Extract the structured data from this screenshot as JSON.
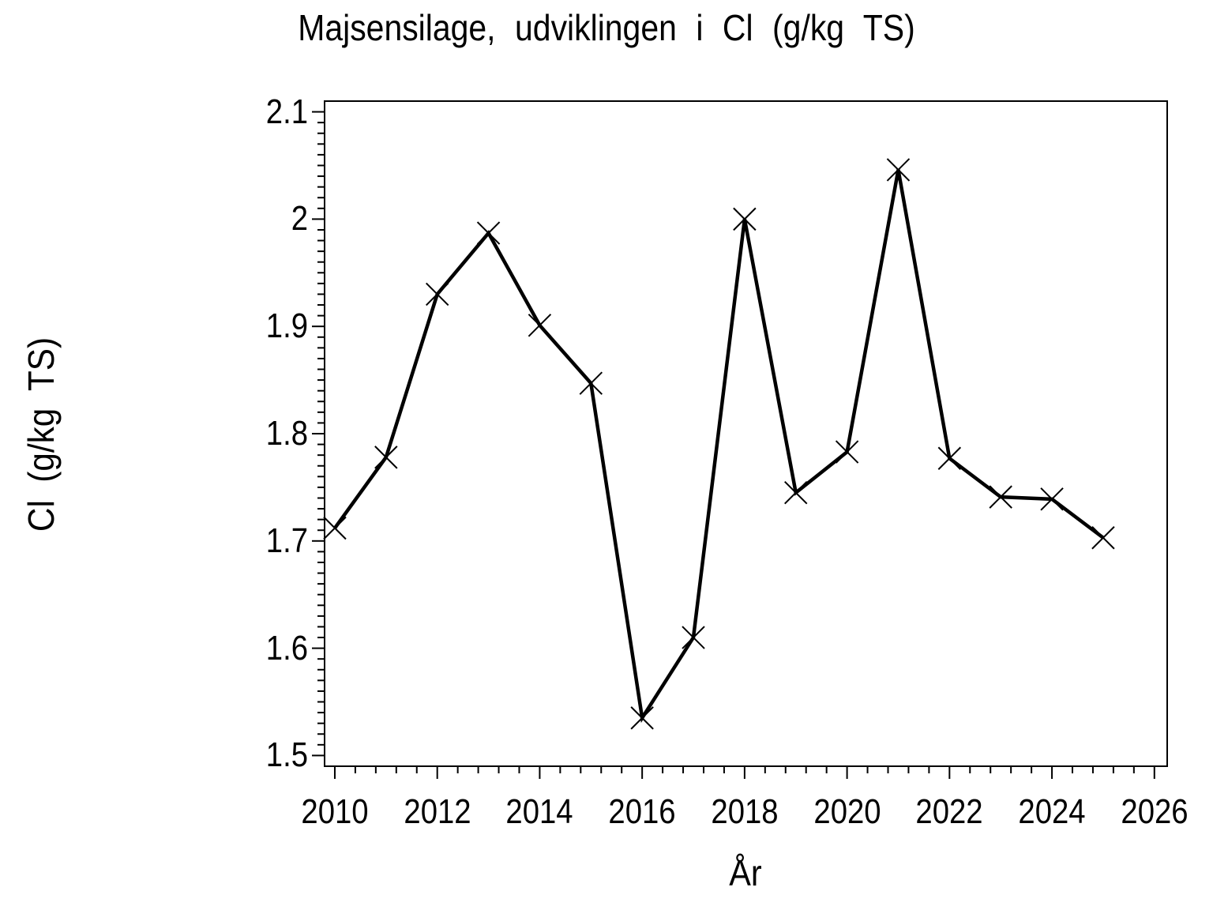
{
  "colors": {
    "foreground": "#000000",
    "background": "#ffffff"
  },
  "chart_data": {
    "type": "line",
    "title": "Majsensilage, udviklingen i Cl (g/kg TS)",
    "xlabel": "År",
    "ylabel": "Cl (g/kg TS)",
    "grid": false,
    "legend": null,
    "marker": "x",
    "series": [
      {
        "name": "Cl (g/kg TS)",
        "x": [
          2010,
          2011,
          2012,
          2013,
          2014,
          2015,
          2016,
          2017,
          2018,
          2019,
          2020,
          2021,
          2022,
          2023,
          2024,
          2025
        ],
        "y": [
          1.712,
          1.778,
          1.93,
          1.987,
          1.901,
          1.847,
          1.535,
          1.61,
          2.0,
          1.745,
          1.783,
          2.046,
          1.777,
          1.741,
          1.739,
          1.703
        ]
      }
    ],
    "axes": {
      "xlim": [
        2009.8,
        2026.25
      ],
      "ylim": [
        1.49,
        2.11
      ],
      "x_major_ticks": [
        2010,
        2012,
        2014,
        2016,
        2018,
        2020,
        2022,
        2024,
        2026
      ],
      "x_tick_labels": [
        "2010",
        "2012",
        "2014",
        "2016",
        "2018",
        "2020",
        "2022",
        "2024",
        "2026"
      ],
      "x_minor_step": 0.4,
      "y_major_ticks": [
        1.5,
        1.6,
        1.7,
        1.8,
        1.9,
        2.0,
        2.1
      ],
      "y_tick_labels": [
        "1.5",
        "1.6",
        "1.7",
        "1.8",
        "1.9",
        "2",
        "2.1"
      ],
      "y_minor_step": 0.01,
      "frame": true
    }
  }
}
